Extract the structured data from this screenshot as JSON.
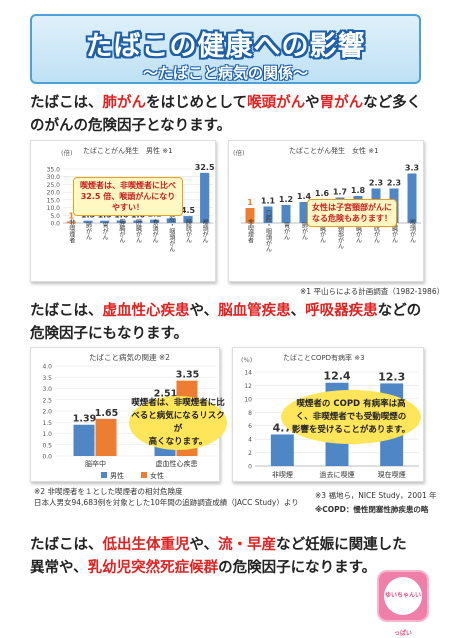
{
  "banner": {
    "title": "たばこの健康への影響",
    "subtitle": "〜たばこと病気の関係〜"
  },
  "para1": {
    "t1": "たばこは、",
    "r1": "肺がん",
    "t2": "をはじめとして",
    "r2": "喉頭がん",
    "t3": "や",
    "r3": "胃がん",
    "t4": "など多くのがんの危険因子となります。"
  },
  "para2": {
    "t1": "たばこは、",
    "r1": "虚血性心疾患",
    "t2": "や、",
    "r2": "脳血管疾患",
    "t3": "、",
    "r3": "呼吸器疾患",
    "t4": "などの危険因子にもなります。"
  },
  "para3": {
    "t1": "たばこは、",
    "r1": "低出生体重児",
    "t2": "や、",
    "r2": "流・早産",
    "t3": "など妊娠に関連した異常や、",
    "r3": "乳幼児突然死症候群",
    "t4": "の危険因子になります。"
  },
  "notes": {
    "n1": "※1 平山らによる計画調査（1982-1986）",
    "n2a": "※2 非喫煙者を１とした喫煙者の相対危険度",
    "n2b": "日本人男女94,683例を対象とした10年間の追跡調査成績（JACC Study）より",
    "n3": "※3 福地ら，NICE Study，2001 年",
    "n4": "※COPD：慢性閉塞性肺疾患の略"
  },
  "callouts": {
    "male": "喫煙者は、非喫煙者に比べ\n32.5 倍、喉頭がんになりやすい！",
    "female": "女性は子宮頸部がんに\nなる危険もあります！",
    "cardio": "喫煙者は、非喫煙者に比\nべると病気になるリスクが\n高くなります。",
    "copd": "喫煙者の COPD 有病率は高\nく、非喫煙者でも受動喫煙の\n影響を受けることがあります。"
  },
  "stamp_text": "ゆいちゃんいっぱい",
  "colors": {
    "red": "#e02222",
    "bar_blue": "#4f87c6",
    "bar_orange": "#ed7d31",
    "banner_blue": "#1d5fa8"
  },
  "chart_data": [
    {
      "type": "bar",
      "title": "たばことがん発生　男性",
      "title_note": "※1",
      "unit_label": "(倍)",
      "categories": [
        "非喫煙者",
        "肺がん",
        "胃がん",
        "膵臓がん",
        "肝臓がん",
        "食道がん",
        "口腔・咽頭がん",
        "膀胱がん",
        "喉頭がん"
      ],
      "values": [
        1,
        1.5,
        1.5,
        1.6,
        1.6,
        2.2,
        3.0,
        4.5,
        32.5
      ],
      "value_labels": [
        "1",
        "1.5",
        "1.5",
        "1.6",
        "1.6",
        "2.2",
        "3.0",
        "4.5",
        "32.5"
      ],
      "highlight_index": 0,
      "yticks": [
        "0.0",
        "5.0",
        "10.0",
        "15.0",
        "20.0",
        "25.0",
        "30.0",
        "35.0"
      ],
      "ylim": [
        0,
        35
      ]
    },
    {
      "type": "bar",
      "title": "たばことがん発生　女性",
      "title_note": "※1",
      "unit_label": "(倍)",
      "categories": [
        "非喫煙者",
        "口腔・咽頭がん",
        "胃がん",
        "肺がん",
        "肝臓がん",
        "子宮頸部がん",
        "膵臓がん",
        "膀胱がん",
        "腎臓がん",
        "喉頭がん"
      ],
      "values": [
        1,
        1.1,
        1.2,
        1.4,
        1.6,
        1.7,
        1.8,
        2.3,
        2.3,
        3.3
      ],
      "value_labels": [
        "1",
        "1.1",
        "1.2",
        "1.4",
        "1.6",
        "1.7",
        "1.8",
        "2.3",
        "2.3",
        "3.3"
      ],
      "highlight_index": 0,
      "ylim": [
        0,
        3.6
      ]
    },
    {
      "type": "bar",
      "title": "たばこと病気の関連",
      "title_note": "※2",
      "categories": [
        "脳卒中",
        "虚血性心疾患"
      ],
      "series": [
        {
          "name": "男性",
          "values": [
            1.39,
            2.51
          ]
        },
        {
          "name": "女性",
          "values": [
            1.65,
            3.35
          ]
        }
      ],
      "yticks": [
        "0.0",
        "0.5",
        "1.0",
        "1.5",
        "2.0",
        "2.5",
        "3.0",
        "3.5",
        "4.0"
      ],
      "ylim": [
        0,
        4.0
      ]
    },
    {
      "type": "bar",
      "title": "たばことCOPD有病率",
      "title_note": "※3",
      "unit_label": "(%)",
      "categories": [
        "非喫煙",
        "過去に喫煙",
        "現在喫煙"
      ],
      "values": [
        4.7,
        12.4,
        12.3
      ],
      "yticks": [
        "0",
        "2",
        "4",
        "6",
        "8",
        "10",
        "12",
        "14"
      ],
      "ylim": [
        0,
        14
      ]
    }
  ]
}
